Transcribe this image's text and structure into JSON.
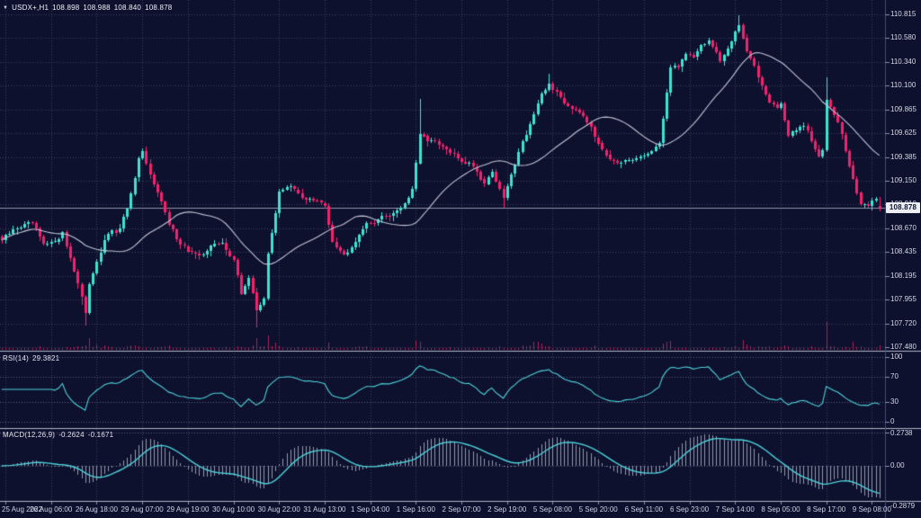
{
  "header": {
    "expander_icon": "▼",
    "symbol_period": "USDX+,H1",
    "open": "108.898",
    "high": "108.988",
    "low": "108.840",
    "close": "108.878"
  },
  "price_axis": {
    "labels": [
      "110.815",
      "110.580",
      "110.340",
      "110.100",
      "109.865",
      "109.625",
      "109.385",
      "109.150",
      "108.910",
      "108.670",
      "108.435",
      "108.195",
      "107.955",
      "107.720",
      "107.480"
    ],
    "current_price_tag": "108.878"
  },
  "time_axis": {
    "labels": [
      "25 Aug 2022",
      "26 Aug 06:00",
      "26 Aug 18:00",
      "29 Aug 07:00",
      "29 Aug 19:00",
      "30 Aug 10:00",
      "30 Aug 22:00",
      "31 Aug 13:00",
      "1 Sep 04:00",
      "1 Sep 16:00",
      "2 Sep 07:00",
      "2 Sep 19:00",
      "5 Sep 08:00",
      "5 Sep 20:00",
      "6 Sep 11:00",
      "6 Sep 23:00",
      "7 Sep 14:00",
      "8 Sep 05:00",
      "8 Sep 17:00",
      "9 Sep 08:00"
    ]
  },
  "rsi_panel": {
    "name": "RSI(14)",
    "value": "29.3821",
    "scale_labels": [
      "100",
      "70",
      "30",
      "0"
    ],
    "scale_values": [
      100,
      70,
      30,
      0
    ]
  },
  "macd_panel": {
    "name": "MACD(12,26,9)",
    "main_value": "-0.2624",
    "signal_value": "-0.1671",
    "scale_labels": [
      "0.2738",
      "0.00",
      "-0.2879"
    ]
  },
  "colors": {
    "background": "#0d112d",
    "grid": "rgba(126,136,176,0.38)",
    "level_line": "rgba(152,158,186,0.55)",
    "candle_up": "#3fe2d2",
    "candle_down": "#f2226e",
    "volume": "#a62458",
    "ma_line": "#c2c5d6",
    "indicator_line": "#4fd0da",
    "macd_histogram": "#9298ac",
    "separator": "#b2b6c6",
    "price_line": "#9096ac",
    "axis_border": "#454c6e",
    "tick_dash": "#8a90a8",
    "axis_text": "#d5d9e7",
    "tag_bg": "#eceef4",
    "tag_text": "#0d112d"
  },
  "chart_data": {
    "type": "candlestick",
    "title": "USDX+,H1",
    "timeframe_hours": 1,
    "price_axis_min": 107.48,
    "price_axis_max": 110.815,
    "candle_count": 232,
    "x_tick_first_index": 1,
    "x_tick_step": 12,
    "ohlc_last": {
      "open": 108.898,
      "high": 108.988,
      "low": 108.84,
      "close": 108.878
    },
    "close_path_anchors": [
      [
        0,
        108.55
      ],
      [
        4,
        108.68
      ],
      [
        8,
        108.72
      ],
      [
        11,
        108.5
      ],
      [
        13,
        108.52
      ],
      [
        16,
        108.62
      ],
      [
        19,
        108.25
      ],
      [
        21,
        107.98
      ],
      [
        22,
        107.8
      ],
      [
        23,
        108.12
      ],
      [
        25,
        108.35
      ],
      [
        28,
        108.62
      ],
      [
        31,
        108.65
      ],
      [
        34,
        109.0
      ],
      [
        36,
        109.35
      ],
      [
        37,
        109.42
      ],
      [
        39,
        109.2
      ],
      [
        41,
        109.05
      ],
      [
        44,
        108.7
      ],
      [
        47,
        108.52
      ],
      [
        49,
        108.45
      ],
      [
        52,
        108.38
      ],
      [
        55,
        108.5
      ],
      [
        58,
        108.52
      ],
      [
        61,
        108.35
      ],
      [
        63,
        108.02
      ],
      [
        65,
        108.18
      ],
      [
        67,
        107.85
      ],
      [
        69,
        107.98
      ],
      [
        70,
        108.4
      ],
      [
        73,
        109.05
      ],
      [
        76,
        109.08
      ],
      [
        79,
        108.98
      ],
      [
        82,
        108.95
      ],
      [
        85,
        108.9
      ],
      [
        87,
        108.55
      ],
      [
        90,
        108.4
      ],
      [
        93,
        108.55
      ],
      [
        95,
        108.68
      ],
      [
        97,
        108.72
      ],
      [
        100,
        108.78
      ],
      [
        103,
        108.82
      ],
      [
        106,
        108.92
      ],
      [
        108,
        109.05
      ],
      [
        110,
        109.6
      ],
      [
        113,
        109.55
      ],
      [
        116,
        109.48
      ],
      [
        119,
        109.4
      ],
      [
        121,
        109.35
      ],
      [
        124,
        109.3
      ],
      [
        127,
        109.12
      ],
      [
        129,
        109.25
      ],
      [
        131,
        109.05
      ],
      [
        132,
        108.98
      ],
      [
        134,
        109.2
      ],
      [
        136,
        109.45
      ],
      [
        139,
        109.72
      ],
      [
        142,
        110.0
      ],
      [
        144,
        110.12
      ],
      [
        146,
        110.02
      ],
      [
        149,
        109.9
      ],
      [
        152,
        109.85
      ],
      [
        155,
        109.7
      ],
      [
        157,
        109.5
      ],
      [
        160,
        109.38
      ],
      [
        163,
        109.32
      ],
      [
        166,
        109.35
      ],
      [
        169,
        109.4
      ],
      [
        171,
        109.45
      ],
      [
        173,
        109.5
      ],
      [
        175,
        110.05
      ],
      [
        176,
        110.28
      ],
      [
        178,
        110.3
      ],
      [
        180,
        110.42
      ],
      [
        182,
        110.4
      ],
      [
        184,
        110.5
      ],
      [
        186,
        110.55
      ],
      [
        188,
        110.42
      ],
      [
        189,
        110.32
      ],
      [
        191,
        110.48
      ],
      [
        193,
        110.65
      ],
      [
        194,
        110.72
      ],
      [
        196,
        110.45
      ],
      [
        198,
        110.28
      ],
      [
        200,
        110.1
      ],
      [
        202,
        109.95
      ],
      [
        204,
        109.88
      ],
      [
        205,
        109.92
      ],
      [
        207,
        109.6
      ],
      [
        209,
        109.65
      ],
      [
        211,
        109.7
      ],
      [
        213,
        109.55
      ],
      [
        215,
        109.38
      ],
      [
        216,
        109.45
      ],
      [
        217,
        109.98
      ],
      [
        218,
        109.9
      ],
      [
        220,
        109.75
      ],
      [
        222,
        109.45
      ],
      [
        224,
        109.15
      ],
      [
        226,
        108.92
      ],
      [
        228,
        108.9
      ],
      [
        230,
        108.95
      ],
      [
        231,
        108.878
      ]
    ],
    "wick_high_overrides": {
      "37": 109.47,
      "110": 109.97,
      "144": 110.22,
      "194": 110.81,
      "217": 110.18
    },
    "wick_low_overrides": {
      "21": 107.9,
      "22": 107.7,
      "67": 107.68,
      "132": 108.88
    },
    "volume_spike_indices": [
      21,
      22,
      23,
      67,
      68,
      69,
      70,
      110,
      132,
      140,
      141,
      142,
      143,
      144,
      193,
      194,
      195,
      196,
      217,
      224,
      225,
      226,
      227
    ],
    "moving_average": {
      "type": "SMA",
      "period": 24
    },
    "indicators": [
      {
        "type": "RSI",
        "period": 14,
        "current": 29.3821,
        "levels": [
          70,
          30
        ]
      },
      {
        "type": "MACD",
        "fast": 12,
        "slow": 26,
        "signal": 9,
        "current_main": -0.2624,
        "current_signal": -0.1671,
        "scale_top": 0.2738,
        "scale_bottom": -0.2879
      }
    ]
  }
}
